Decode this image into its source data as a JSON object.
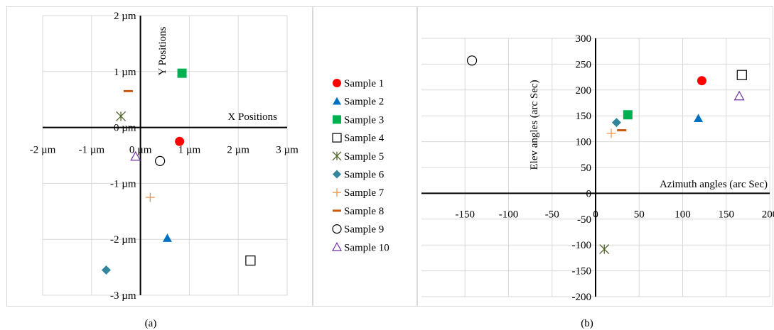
{
  "legend": {
    "entries": [
      {
        "label": "Sample 1",
        "marker": "circle-filled",
        "color": "#ff0000"
      },
      {
        "label": "Sample 2",
        "marker": "triangle-filled",
        "color": "#0070c0"
      },
      {
        "label": "Sample 3",
        "marker": "square-filled",
        "color": "#00b050"
      },
      {
        "label": "Sample 4",
        "marker": "square-open",
        "color": "#000000"
      },
      {
        "label": "Sample 5",
        "marker": "asterisk",
        "color": "#4f6228"
      },
      {
        "label": "Sample 6",
        "marker": "diamond-filled",
        "color": "#31859c"
      },
      {
        "label": "Sample 7",
        "marker": "plus",
        "color": "#f79646"
      },
      {
        "label": "Sample 8",
        "marker": "dash",
        "color": "#c55a11"
      },
      {
        "label": "Sample 9",
        "marker": "circle-open",
        "color": "#000000"
      },
      {
        "label": "Sample 10",
        "marker": "triangle-open",
        "color": "#7030a0"
      }
    ]
  },
  "chart_data": [
    {
      "type": "scatter",
      "panel_label": "(a)",
      "xlabel": "X Positions",
      "ylabel": "Y Positions",
      "xlim": [
        -2,
        3
      ],
      "ylim": [
        -3,
        2
      ],
      "x_ticks": [
        {
          "value": -2,
          "label": "-2 µm"
        },
        {
          "value": -1,
          "label": "-1 µm"
        },
        {
          "value": 0,
          "label": "0 µm"
        },
        {
          "value": 1,
          "label": "1 µm"
        },
        {
          "value": 2,
          "label": "2 µm"
        },
        {
          "value": 3,
          "label": "3 µm"
        }
      ],
      "y_ticks": [
        {
          "value": 2,
          "label": "2 µm"
        },
        {
          "value": 1,
          "label": "1 µm"
        },
        {
          "value": 0,
          "label": "0 µm"
        },
        {
          "value": -1,
          "label": "-1 µm"
        },
        {
          "value": -2,
          "label": "-2 µm"
        },
        {
          "value": -3,
          "label": "-3 µm"
        }
      ],
      "grid": true,
      "points": [
        {
          "sample": 0,
          "x": 0.8,
          "y": -0.25
        },
        {
          "sample": 1,
          "x": 0.55,
          "y": -1.98
        },
        {
          "sample": 2,
          "x": 0.85,
          "y": 0.97
        },
        {
          "sample": 3,
          "x": 2.25,
          "y": -2.38
        },
        {
          "sample": 4,
          "x": -0.4,
          "y": 0.2
        },
        {
          "sample": 5,
          "x": -0.7,
          "y": -2.55
        },
        {
          "sample": 6,
          "x": 0.2,
          "y": -1.25
        },
        {
          "sample": 7,
          "x": -0.25,
          "y": 0.65
        },
        {
          "sample": 8,
          "x": 0.4,
          "y": -0.6
        },
        {
          "sample": 9,
          "x": -0.1,
          "y": -0.52
        }
      ]
    },
    {
      "type": "scatter",
      "panel_label": "(b)",
      "xlabel": "Azimuth angles (arc Sec)",
      "ylabel": "Elev  angles (arc Sec)",
      "xlim": [
        -200,
        200
      ],
      "ylim": [
        -200,
        300
      ],
      "x_ticks": [
        {
          "value": -150,
          "label": "-150"
        },
        {
          "value": -100,
          "label": "-100"
        },
        {
          "value": -50,
          "label": "-50"
        },
        {
          "value": 0,
          "label": "0"
        },
        {
          "value": 50,
          "label": "50"
        },
        {
          "value": 100,
          "label": "100"
        },
        {
          "value": 150,
          "label": "150"
        },
        {
          "value": 200,
          "label": "200"
        }
      ],
      "y_ticks": [
        {
          "value": 300,
          "label": "300"
        },
        {
          "value": 250,
          "label": "250"
        },
        {
          "value": 200,
          "label": "200"
        },
        {
          "value": 150,
          "label": "150"
        },
        {
          "value": 100,
          "label": "100"
        },
        {
          "value": 50,
          "label": "50"
        },
        {
          "value": 0,
          "label": "0"
        },
        {
          "value": -50,
          "label": "-50"
        },
        {
          "value": -100,
          "label": "-100"
        },
        {
          "value": -150,
          "label": "-150"
        },
        {
          "value": -200,
          "label": "-200"
        }
      ],
      "grid": true,
      "points": [
        {
          "sample": 0,
          "x": 122,
          "y": 218
        },
        {
          "sample": 1,
          "x": 118,
          "y": 145
        },
        {
          "sample": 2,
          "x": 37,
          "y": 152
        },
        {
          "sample": 3,
          "x": 168,
          "y": 229
        },
        {
          "sample": 4,
          "x": 10,
          "y": -108
        },
        {
          "sample": 5,
          "x": 24,
          "y": 137
        },
        {
          "sample": 6,
          "x": 18,
          "y": 116
        },
        {
          "sample": 7,
          "x": 30,
          "y": 122
        },
        {
          "sample": 8,
          "x": -142,
          "y": 257
        },
        {
          "sample": 9,
          "x": 165,
          "y": 188
        }
      ]
    }
  ]
}
